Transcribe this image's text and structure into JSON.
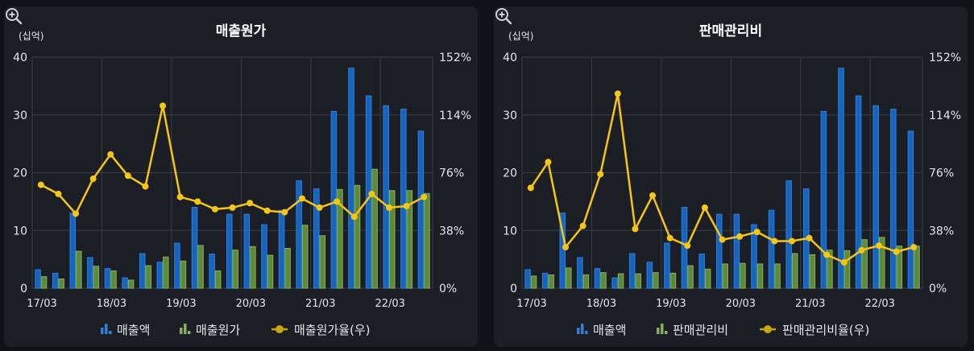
{
  "colors": {
    "sales_bar": "#1565c0",
    "sales_bar_light": "#2f7fd8",
    "second_bar": "#5d8a3a",
    "second_bar_light": "#86b05c",
    "ratio_line": "#f5c518",
    "grid": "#3a3d47",
    "text": "#e6e6e6",
    "title": "#ffffff"
  },
  "icons": {
    "zoom": "zoom-in-icon"
  },
  "chart_data": [
    {
      "type": "bar+line",
      "title": "매출원가",
      "unit_label": "(십억)",
      "left_axis": {
        "min": 0,
        "max": 40,
        "ticks": [
          "0",
          "10",
          "20",
          "30",
          "40"
        ]
      },
      "right_axis": {
        "min": 0,
        "max": 152,
        "ticks": [
          "0%",
          "38%",
          "76%",
          "114%",
          "152%"
        ]
      },
      "x_tick_labels": [
        "17/03",
        "18/03",
        "19/03",
        "20/03",
        "21/03",
        "22/03"
      ],
      "legend": [
        "매출액",
        "매출원가",
        "매출원가율(우)"
      ],
      "series": [
        {
          "name": "매출액",
          "values": [
            3.2,
            2.6,
            13.0,
            5.3,
            3.4,
            1.8,
            6.0,
            4.5,
            7.8,
            14.0,
            5.9,
            12.8,
            12.8,
            11.0,
            13.5,
            18.6,
            17.2,
            30.6,
            38.1,
            33.3,
            31.6,
            31.0,
            27.2
          ]
        },
        {
          "name": "매출원가",
          "values": [
            2.0,
            1.6,
            6.4,
            3.8,
            3.0,
            1.4,
            3.9,
            5.4,
            4.7,
            7.4,
            3.0,
            6.6,
            7.2,
            5.7,
            6.9,
            10.9,
            9.1,
            17.1,
            17.8,
            20.6,
            16.9,
            16.9,
            16.4
          ]
        },
        {
          "name": "매출원가율(우)",
          "values": [
            68,
            62,
            49,
            72,
            88,
            74,
            67,
            120,
            60,
            57,
            52,
            53,
            56,
            51,
            50,
            59,
            53,
            57,
            47,
            62,
            53,
            54,
            60
          ]
        }
      ]
    },
    {
      "type": "bar+line",
      "title": "판매관리비",
      "unit_label": "(십억)",
      "left_axis": {
        "min": 0,
        "max": 40,
        "ticks": [
          "0",
          "10",
          "20",
          "30",
          "40"
        ]
      },
      "right_axis": {
        "min": 0,
        "max": 152,
        "ticks": [
          "0%",
          "38%",
          "76%",
          "114%",
          "152%"
        ]
      },
      "x_tick_labels": [
        "17/03",
        "18/03",
        "19/03",
        "20/03",
        "21/03",
        "22/03"
      ],
      "legend": [
        "매출액",
        "판매관리비",
        "판매관리비율(우)"
      ],
      "series": [
        {
          "name": "매출액",
          "values": [
            3.2,
            2.6,
            13.0,
            5.3,
            3.4,
            1.8,
            6.0,
            4.5,
            7.8,
            14.0,
            5.9,
            12.8,
            12.8,
            11.0,
            13.5,
            18.6,
            17.2,
            30.6,
            38.1,
            33.3,
            31.6,
            31.0,
            27.2
          ]
        },
        {
          "name": "판매관리비",
          "values": [
            2.1,
            2.3,
            3.5,
            2.3,
            2.7,
            2.5,
            2.5,
            2.7,
            2.6,
            3.9,
            3.3,
            4.2,
            4.3,
            4.2,
            4.2,
            6.0,
            5.8,
            6.6,
            6.5,
            8.4,
            8.8,
            7.3,
            7.3
          ]
        },
        {
          "name": "판매관리비율(우)",
          "values": [
            66,
            83,
            27,
            41,
            75,
            128,
            39,
            61,
            33,
            28,
            53,
            32,
            34,
            37,
            31,
            31,
            33,
            22,
            17,
            25,
            28,
            24,
            27
          ]
        }
      ]
    }
  ]
}
